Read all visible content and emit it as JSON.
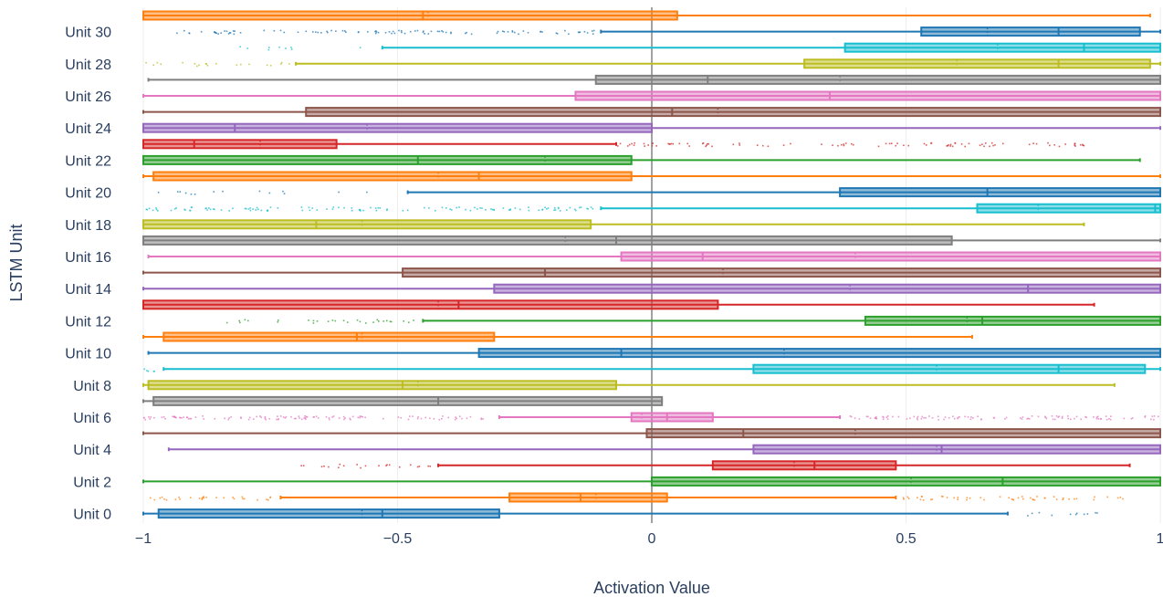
{
  "chart_data": {
    "type": "box",
    "orientation": "horizontal",
    "xlabel": "Activation Value",
    "ylabel": "LSTM Unit",
    "xlim": [
      -1,
      1
    ],
    "x_ticks": [
      -1,
      -0.5,
      0,
      0.5,
      1
    ],
    "x_tick_labels": [
      "−1",
      "−0.5",
      "0",
      "0.5",
      "1"
    ],
    "grid": true,
    "zero_line": true,
    "y_tick_labels": [
      "Unit 0",
      "Unit 2",
      "Unit 4",
      "Unit 6",
      "Unit 8",
      "Unit 10",
      "Unit 12",
      "Unit 14",
      "Unit 16",
      "Unit 18",
      "Unit 20",
      "Unit 22",
      "Unit 24",
      "Unit 26",
      "Unit 28",
      "Unit 30"
    ],
    "series": [
      {
        "unit": 0,
        "color": "#1f77b4",
        "whisker_low": -1.0,
        "q1": -0.97,
        "median": -0.53,
        "mean": -0.57,
        "q3": -0.3,
        "whisker_high": 0.7,
        "outlier_range": [
          0.72,
          0.95
        ],
        "outlier_density": 0.2
      },
      {
        "unit": 1,
        "color": "#ff7f0e",
        "whisker_low": -0.73,
        "q1": -0.28,
        "median": -0.14,
        "mean": -0.11,
        "q3": 0.03,
        "whisker_high": 0.48,
        "outlier_range": [
          -1.0,
          -0.74
        ],
        "outlier_range2": [
          0.49,
          0.97
        ],
        "outlier_density": 0.6
      },
      {
        "unit": 2,
        "color": "#2ca02c",
        "whisker_low": -1.0,
        "q1": 0.0,
        "median": 0.69,
        "mean": 0.51,
        "q3": 1.0,
        "whisker_high": 1.0
      },
      {
        "unit": 3,
        "color": "#d62728",
        "whisker_low": -0.42,
        "q1": 0.12,
        "median": 0.32,
        "mean": 0.28,
        "q3": 0.48,
        "whisker_high": 0.94,
        "outlier_range": [
          -0.7,
          -0.43
        ],
        "outlier_density": 0.4
      },
      {
        "unit": 4,
        "color": "#9467bd",
        "whisker_low": -0.95,
        "q1": 0.2,
        "median": 0.57,
        "mean": 0.56,
        "q3": 1.0,
        "whisker_high": 1.0
      },
      {
        "unit": 5,
        "color": "#8c564b",
        "whisker_low": -1.0,
        "q1": -0.01,
        "median": 0.18,
        "mean": 0.4,
        "q3": 1.0,
        "whisker_high": 1.0
      },
      {
        "unit": 6,
        "color": "#e377c2",
        "whisker_low": -0.3,
        "q1": -0.04,
        "median": 0.03,
        "mean": -0.02,
        "q3": 0.12,
        "whisker_high": 0.37,
        "outlier_range": [
          -1.0,
          -0.31
        ],
        "outlier_range2": [
          0.38,
          1.0
        ],
        "outlier_density": 1.0
      },
      {
        "unit": 7,
        "color": "#7f7f7f",
        "whisker_low": -1.0,
        "q1": -0.98,
        "median": -0.42,
        "mean": -0.42,
        "q3": 0.02,
        "whisker_high": 0.02
      },
      {
        "unit": 8,
        "color": "#bcbd22",
        "whisker_low": -1.0,
        "q1": -0.99,
        "median": -0.49,
        "mean": -0.46,
        "q3": -0.07,
        "whisker_high": 0.91
      },
      {
        "unit": 9,
        "color": "#17becf",
        "whisker_low": -0.96,
        "q1": 0.2,
        "median": 0.8,
        "mean": 0.56,
        "q3": 0.97,
        "whisker_high": 1.0,
        "outlier_range": [
          -1.0,
          -0.97
        ],
        "outlier_density": 0.3
      },
      {
        "unit": 10,
        "color": "#1f77b4",
        "whisker_low": -0.99,
        "q1": -0.34,
        "median": -0.06,
        "mean": 0.26,
        "q3": 1.0,
        "whisker_high": 1.0
      },
      {
        "unit": 11,
        "color": "#ff7f0e",
        "whisker_low": -1.0,
        "q1": -0.96,
        "median": -0.58,
        "mean": -0.57,
        "q3": -0.31,
        "whisker_high": 0.63
      },
      {
        "unit": 12,
        "color": "#2ca02c",
        "whisker_low": -0.45,
        "q1": 0.42,
        "median": 0.65,
        "mean": 0.62,
        "q3": 1.0,
        "whisker_high": 1.0,
        "outlier_range": [
          -0.85,
          -0.46
        ],
        "outlier_density": 0.4
      },
      {
        "unit": 13,
        "color": "#d62728",
        "whisker_low": -1.0,
        "q1": -1.0,
        "median": -0.38,
        "mean": -0.42,
        "q3": 0.13,
        "whisker_high": 0.87
      },
      {
        "unit": 14,
        "color": "#9467bd",
        "whisker_low": -1.0,
        "q1": -0.31,
        "median": 0.74,
        "mean": 0.39,
        "q3": 1.0,
        "whisker_high": 1.0
      },
      {
        "unit": 15,
        "color": "#8c564b",
        "whisker_low": -1.0,
        "q1": -0.49,
        "median": -0.21,
        "mean": 0.14,
        "q3": 1.0,
        "whisker_high": 1.0
      },
      {
        "unit": 16,
        "color": "#e377c2",
        "whisker_low": -0.99,
        "q1": -0.06,
        "median": 0.1,
        "mean": 0.4,
        "q3": 1.0,
        "whisker_high": 1.0
      },
      {
        "unit": 17,
        "color": "#7f7f7f",
        "whisker_low": -1.0,
        "q1": -1.0,
        "median": -0.07,
        "mean": -0.17,
        "q3": 0.59,
        "whisker_high": 1.0
      },
      {
        "unit": 18,
        "color": "#bcbd22",
        "whisker_low": -1.0,
        "q1": -1.0,
        "median": -0.66,
        "mean": -0.57,
        "q3": -0.12,
        "whisker_high": 0.85
      },
      {
        "unit": 19,
        "color": "#17becf",
        "whisker_low": -0.1,
        "q1": 0.64,
        "median": 0.99,
        "mean": 0.76,
        "q3": 1.0,
        "whisker_high": 1.0,
        "outlier_range": [
          -1.0,
          -0.11
        ],
        "outlier_density": 0.8
      },
      {
        "unit": 20,
        "color": "#1f77b4",
        "whisker_low": -0.48,
        "q1": 0.37,
        "median": 0.66,
        "mean": 0.66,
        "q3": 1.0,
        "whisker_high": 1.0,
        "outlier_range": [
          -0.98,
          -0.55
        ],
        "outlier_density": 0.15
      },
      {
        "unit": 21,
        "color": "#ff7f0e",
        "whisker_low": -1.0,
        "q1": -0.98,
        "median": -0.34,
        "mean": -0.42,
        "q3": -0.04,
        "whisker_high": 1.0
      },
      {
        "unit": 22,
        "color": "#2ca02c",
        "whisker_low": -1.0,
        "q1": -1.0,
        "median": -0.46,
        "mean": -0.21,
        "q3": -0.04,
        "whisker_high": 0.96
      },
      {
        "unit": 23,
        "color": "#d62728",
        "whisker_low": -1.0,
        "q1": -1.0,
        "median": -0.9,
        "mean": -0.77,
        "q3": -0.62,
        "whisker_high": -0.07,
        "outlier_range": [
          -0.07,
          0.86
        ],
        "outlier_density": 0.6
      },
      {
        "unit": 24,
        "color": "#9467bd",
        "whisker_low": -1.0,
        "q1": -1.0,
        "median": -0.82,
        "mean": -0.56,
        "q3": 0.0,
        "whisker_high": 1.0
      },
      {
        "unit": 25,
        "color": "#8c564b",
        "whisker_low": -1.0,
        "q1": -0.68,
        "median": 0.04,
        "mean": 0.13,
        "q3": 1.0,
        "whisker_high": 1.0
      },
      {
        "unit": 26,
        "color": "#e377c2",
        "whisker_low": -1.0,
        "q1": -0.15,
        "median": 0.35,
        "mean": 0.35,
        "q3": 1.0,
        "whisker_high": 1.0
      },
      {
        "unit": 27,
        "color": "#7f7f7f",
        "whisker_low": -0.99,
        "q1": -0.11,
        "median": 0.11,
        "mean": 0.37,
        "q3": 1.0,
        "whisker_high": 1.0
      },
      {
        "unit": 28,
        "color": "#bcbd22",
        "whisker_low": -0.7,
        "q1": 0.3,
        "median": 0.8,
        "mean": 0.6,
        "q3": 0.98,
        "whisker_high": 1.0,
        "outlier_range": [
          -1.0,
          -0.71
        ],
        "outlier_density": 0.35
      },
      {
        "unit": 29,
        "color": "#17becf",
        "whisker_low": -0.53,
        "q1": 0.38,
        "median": 0.85,
        "mean": 0.68,
        "q3": 1.0,
        "whisker_high": 1.0,
        "outlier_range": [
          -0.83,
          -0.54
        ],
        "outlier_density": 0.1
      },
      {
        "unit": 30,
        "color": "#1f77b4",
        "whisker_low": -0.1,
        "q1": 0.53,
        "median": 0.8,
        "mean": 0.66,
        "q3": 0.96,
        "whisker_high": 1.0,
        "outlier_range": [
          -0.96,
          -0.11
        ],
        "outlier_density": 0.7
      },
      {
        "unit": 31,
        "color": "#ff7f0e",
        "whisker_low": -1.0,
        "q1": -1.0,
        "median": -0.45,
        "mean": -0.44,
        "q3": 0.05,
        "whisker_high": 0.98
      }
    ]
  }
}
